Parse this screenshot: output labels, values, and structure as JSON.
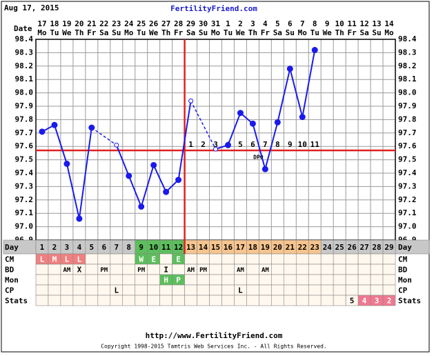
{
  "header": {
    "date": "Aug 17, 2015",
    "site": "FertilityFriend.com"
  },
  "chart_data": {
    "type": "line",
    "date_label": "Date",
    "dates": [
      "17",
      "18",
      "19",
      "20",
      "21",
      "22",
      "23",
      "24",
      "25",
      "26",
      "27",
      "28",
      "29",
      "30",
      "31",
      "1",
      "2",
      "3",
      "4",
      "5",
      "6",
      "7",
      "8",
      "9",
      "10",
      "11",
      "12",
      "13",
      "14"
    ],
    "weekdays": [
      "Mo",
      "Tu",
      "We",
      "Th",
      "Fr",
      "Sa",
      "Su",
      "Mo",
      "Tu",
      "We",
      "Th",
      "Fr",
      "Sa",
      "Su",
      "Mo",
      "Tu",
      "We",
      "Th",
      "Fr",
      "Sa",
      "Su",
      "Mo",
      "Tu",
      "We",
      "Th",
      "Fr",
      "Sa",
      "Su",
      "Mo"
    ],
    "categories": [
      1,
      2,
      3,
      4,
      5,
      6,
      7,
      8,
      9,
      10,
      11,
      12,
      13,
      14,
      15,
      16,
      17,
      18,
      19,
      20,
      21,
      22,
      23,
      24,
      25,
      26,
      27,
      28,
      29
    ],
    "series": [
      {
        "color": "#1a1aee",
        "values": [
          97.71,
          97.76,
          97.47,
          97.06,
          97.74,
          null,
          97.61,
          97.38,
          97.15,
          97.46,
          97.26,
          97.35,
          97.94,
          null,
          97.58,
          97.61,
          97.85,
          97.77,
          97.43,
          97.78,
          98.18,
          97.82,
          98.32,
          null,
          null,
          null,
          null,
          null,
          null
        ],
        "hollow": [
          false,
          false,
          false,
          false,
          false,
          false,
          true,
          false,
          false,
          false,
          false,
          false,
          true,
          false,
          true,
          false,
          false,
          false,
          false,
          false,
          false,
          false,
          false,
          false,
          false,
          false,
          false,
          false,
          false
        ]
      }
    ],
    "ylim": [
      96.9,
      98.4
    ],
    "yticks": [
      96.9,
      {
        "value": 97.0,
        "label": "97.0"
      },
      97.1,
      97.2,
      97.3,
      97.4,
      97.5,
      97.6,
      97.7,
      97.8,
      97.9,
      {
        "value": 98.0,
        "label": "98.0"
      },
      98.1,
      98.2,
      98.3,
      98.4
    ],
    "grid": true,
    "coverline": 97.57,
    "marker_color": "#e02020",
    "ovulation_day": 12,
    "dpo": [
      null,
      null,
      null,
      null,
      null,
      null,
      null,
      null,
      null,
      null,
      null,
      null,
      1,
      2,
      3,
      4,
      5,
      6,
      7,
      8,
      9,
      10,
      11,
      null,
      null,
      null,
      null,
      null,
      null
    ],
    "dpo_label": "DPO",
    "dpo_label_day": 19
  },
  "table": {
    "day_label": "Day",
    "day_colors": [
      "#c8c8c8",
      "#c8c8c8",
      "#c8c8c8",
      "#c8c8c8",
      "#c8c8c8",
      "#c8c8c8",
      "#c8c8c8",
      "#c8c8c8",
      "#5cbf5c",
      "#5cbf5c",
      "#5cbf5c",
      "#5cbf5c",
      "#f6c48e",
      "#f6c48e",
      "#f6c48e",
      "#f6c48e",
      "#f6c48e",
      "#f6c48e",
      "#f6c48e",
      "#f6c48e",
      "#f6c48e",
      "#f6c48e",
      "#f6c48e",
      "#c8c8c8",
      "#c8c8c8",
      "#c8c8c8",
      "#c8c8c8",
      "#c8c8c8",
      "#c8c8c8"
    ],
    "rows": [
      {
        "label": "CM",
        "cells": [
          "L",
          "M",
          "L",
          "L",
          null,
          null,
          null,
          null,
          "W",
          "E",
          null,
          "E",
          null,
          null,
          null,
          null,
          null,
          null,
          null,
          null,
          null,
          null,
          null,
          null,
          null,
          null,
          null,
          null,
          null
        ],
        "colors": [
          "#f08080",
          "#f08080",
          "#f08080",
          "#f08080",
          null,
          null,
          null,
          null,
          "#5cbf5c",
          "#5cbf5c",
          null,
          "#5cbf5c",
          null,
          null,
          null,
          null,
          null,
          null,
          null,
          null,
          null,
          null,
          null,
          null,
          null,
          null,
          null,
          null,
          null
        ]
      },
      {
        "label": "BD",
        "cells": [
          null,
          null,
          "AM",
          "X",
          null,
          "PM",
          null,
          null,
          "PM",
          null,
          "I",
          null,
          "AM",
          "PM",
          null,
          null,
          "AM",
          null,
          "AM",
          null,
          null,
          null,
          null,
          null,
          null,
          null,
          null,
          null,
          null
        ]
      },
      {
        "label": "Mon",
        "cells": [
          null,
          null,
          null,
          null,
          null,
          null,
          null,
          null,
          null,
          null,
          "H",
          "P",
          null,
          null,
          null,
          null,
          null,
          null,
          null,
          null,
          null,
          null,
          null,
          null,
          null,
          null,
          null,
          null,
          null
        ],
        "colors": [
          null,
          null,
          null,
          null,
          null,
          null,
          null,
          null,
          null,
          null,
          "#5cbf5c",
          "#5cbf5c",
          null,
          null,
          null,
          null,
          null,
          null,
          null,
          null,
          null,
          null,
          null,
          null,
          null,
          null,
          null,
          null,
          null
        ]
      },
      {
        "label": "CP",
        "cells": [
          null,
          null,
          null,
          null,
          null,
          null,
          "L",
          null,
          null,
          null,
          null,
          null,
          null,
          null,
          null,
          null,
          "L",
          null,
          null,
          null,
          null,
          null,
          null,
          null,
          null,
          null,
          null,
          null,
          null
        ]
      },
      {
        "label": "Stats",
        "cells": [
          null,
          null,
          null,
          null,
          null,
          null,
          null,
          null,
          null,
          null,
          null,
          null,
          null,
          null,
          null,
          null,
          null,
          null,
          null,
          null,
          null,
          null,
          null,
          null,
          null,
          "5",
          "4",
          "3",
          "2"
        ],
        "colors": [
          null,
          null,
          null,
          null,
          null,
          null,
          null,
          null,
          null,
          null,
          null,
          null,
          null,
          null,
          null,
          null,
          null,
          null,
          null,
          null,
          null,
          null,
          null,
          null,
          null,
          null,
          "#f07890",
          "#f07890",
          "#f07890"
        ]
      }
    ]
  },
  "footer": {
    "url": "http://www.FertilityFriend.com",
    "copyright": "Copyright 1998-2015 Tamtris Web Services Inc. - All Rights Reserved."
  }
}
